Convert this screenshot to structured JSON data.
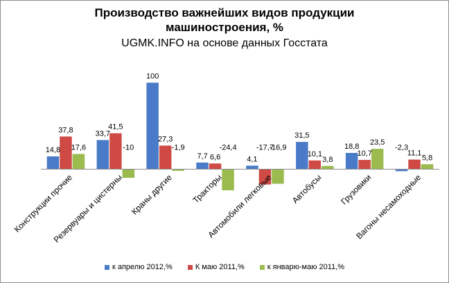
{
  "chart_data": {
    "type": "bar",
    "title": "Производство важнейших видов продукции машиностроения, %",
    "title_line1": "Производство важнейших видов продукции",
    "title_line2": "машиностроения, %",
    "subtitle": "UGMK.INFO на основе данных Госстата",
    "categories": [
      "Конструкции прочие",
      "Резервуары и цистерны",
      "Краны другие",
      "Тракторы",
      "Автомобили легковые",
      "Автобусы",
      "Грузовики",
      "Вагоны несамоходные"
    ],
    "series": [
      {
        "name": "к апрелю 2012,%",
        "color": "#4a7bc9",
        "values": [
          14.8,
          33.7,
          100,
          7.7,
          4.1,
          31.5,
          18.8,
          -2.3
        ],
        "labels": [
          "14,8",
          "33,7",
          "100",
          "7,7",
          "4,1",
          "31,5",
          "18,8",
          "-2,3"
        ]
      },
      {
        "name": "К маю 2011,%",
        "color": "#cf4a45",
        "values": [
          37.8,
          41.5,
          27.3,
          6.6,
          -17.7,
          10.1,
          10.7,
          11.1
        ],
        "labels": [
          "37,8",
          "41,5",
          "27,3",
          "6,6",
          "-17,7",
          "10,1",
          "10,7",
          "11,1"
        ]
      },
      {
        "name": "к январю-маю 2011,%",
        "color": "#9bbb4f",
        "values": [
          17.6,
          -10,
          -1.9,
          -24.4,
          -16.9,
          3.8,
          23.5,
          5.8
        ],
        "labels": [
          "17,6",
          "-10",
          "-1,9",
          "-24,4",
          "-16,9",
          "3,8",
          "23,5",
          "5,8"
        ]
      }
    ],
    "xlabel": "",
    "ylabel": "",
    "ylim": [
      -30,
      100
    ],
    "grid": false,
    "legend": "bottom"
  }
}
